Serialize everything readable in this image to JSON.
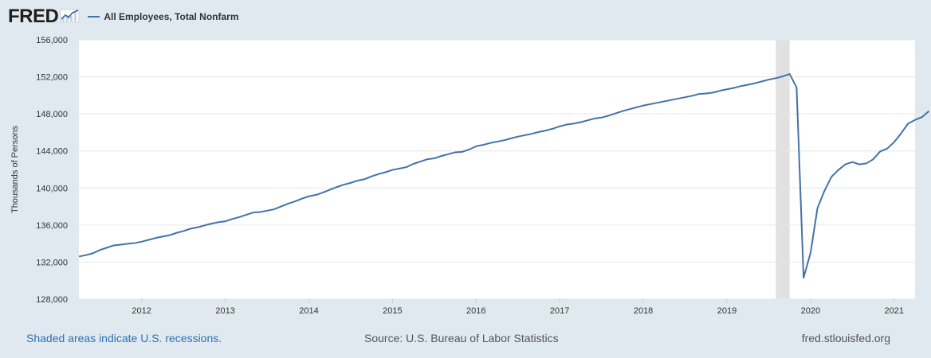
{
  "header": {
    "logo_text": "FRED",
    "logo_icon": "trend-chart-icon"
  },
  "colors": {
    "series": "#4572a7",
    "background": "#e1e9f0",
    "plot_bg": "#ffffff",
    "recession": "#e1e1e1",
    "grid": "#e6e6e6"
  },
  "footer": {
    "recession_note": "Shaded areas indicate U.S. recessions.",
    "source": "Source: U.S. Bureau of Labor Statistics",
    "site": "fred.stlouisfed.org"
  },
  "chart_data": {
    "type": "line",
    "title": "",
    "xlabel": "",
    "ylabel": "Thousands of Persons",
    "legend": [
      "All Employees, Total Nonfarm"
    ],
    "legend_position": "top-left",
    "ylim": [
      128000,
      156000
    ],
    "xlim": [
      "2011-10",
      "2021-10"
    ],
    "grid": true,
    "y_ticks": [
      128000,
      132000,
      136000,
      140000,
      144000,
      148000,
      152000,
      156000
    ],
    "y_tick_labels": [
      "128,000",
      "132,000",
      "136,000",
      "140,000",
      "144,000",
      "148,000",
      "152,000",
      "156,000"
    ],
    "x_tick_labels": [
      "2012",
      "2013",
      "2014",
      "2015",
      "2016",
      "2017",
      "2018",
      "2019",
      "2020",
      "2021"
    ],
    "recessions": [
      {
        "start": "2020-02",
        "end": "2020-04"
      }
    ],
    "series": [
      {
        "name": "All Employees, Total Nonfarm",
        "start": "2011-10",
        "frequency": "monthly",
        "values": [
          132600,
          132750,
          132950,
          133300,
          133550,
          133800,
          133880,
          133980,
          134050,
          134200,
          134400,
          134600,
          134750,
          134900,
          135150,
          135350,
          135600,
          135750,
          135950,
          136150,
          136300,
          136400,
          136650,
          136850,
          137100,
          137350,
          137400,
          137550,
          137700,
          138000,
          138300,
          138550,
          138850,
          139100,
          139250,
          139500,
          139800,
          140100,
          140350,
          140550,
          140800,
          140950,
          141250,
          141500,
          141700,
          141950,
          142100,
          142250,
          142600,
          142850,
          143100,
          143200,
          143450,
          143650,
          143850,
          143900,
          144150,
          144500,
          144650,
          144850,
          145000,
          145150,
          145350,
          145550,
          145700,
          145850,
          146050,
          146200,
          146400,
          146650,
          146850,
          146950,
          147100,
          147300,
          147500,
          147600,
          147800,
          148050,
          148300,
          148500,
          148700,
          148900,
          149050,
          149200,
          149350,
          149500,
          149650,
          149800,
          149950,
          150150,
          150200,
          150300,
          150500,
          150650,
          150800,
          151000,
          151150,
          151300,
          151500,
          151700,
          151850,
          152050,
          152300,
          150850,
          130300,
          133000,
          137850,
          139700,
          141200,
          141950,
          142550,
          142800,
          142550,
          142650,
          143100,
          143950,
          144250,
          144950,
          145900,
          146950,
          147350,
          147650,
          148300
        ]
      }
    ]
  }
}
